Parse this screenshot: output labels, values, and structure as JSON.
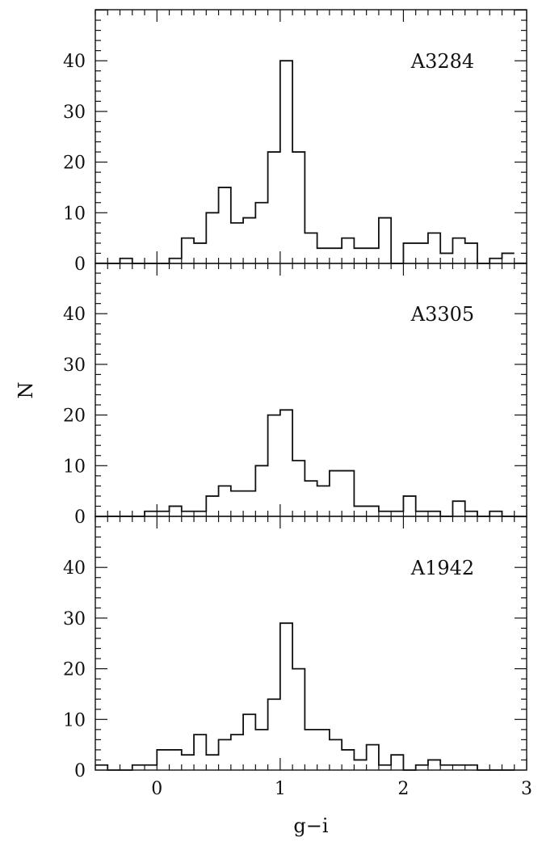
{
  "chart_data": [
    {
      "type": "bar",
      "subtype": "step-histogram",
      "label": "A3284",
      "bin_width": 0.1,
      "bin_starts": [
        -0.4,
        -0.3,
        -0.2,
        -0.1,
        0.0,
        0.1,
        0.2,
        0.3,
        0.4,
        0.5,
        0.6,
        0.7,
        0.8,
        0.9,
        1.0,
        1.1,
        1.2,
        1.3,
        1.4,
        1.5,
        1.6,
        1.7,
        1.8,
        1.9,
        2.0,
        2.1,
        2.2,
        2.3,
        2.4,
        2.5,
        2.6,
        2.7,
        2.8
      ],
      "values": [
        0,
        1,
        0,
        0,
        0,
        1,
        5,
        4,
        10,
        15,
        8,
        9,
        12,
        22,
        40,
        22,
        6,
        3,
        3,
        5,
        3,
        3,
        9,
        0,
        4,
        4,
        6,
        2,
        5,
        4,
        0,
        1,
        2
      ],
      "xlim": [
        -0.5,
        3.0
      ],
      "ylim": [
        0,
        50
      ]
    },
    {
      "type": "bar",
      "subtype": "step-histogram",
      "label": "A3305",
      "bin_width": 0.1,
      "bin_starts": [
        -0.4,
        -0.3,
        -0.2,
        -0.1,
        0.0,
        0.1,
        0.2,
        0.3,
        0.4,
        0.5,
        0.6,
        0.7,
        0.8,
        0.9,
        1.0,
        1.1,
        1.2,
        1.3,
        1.4,
        1.5,
        1.6,
        1.7,
        1.8,
        1.9,
        2.0,
        2.1,
        2.2,
        2.3,
        2.4,
        2.5,
        2.6,
        2.7,
        2.8
      ],
      "values": [
        0,
        0,
        0,
        1,
        1,
        2,
        1,
        1,
        4,
        6,
        5,
        5,
        10,
        20,
        21,
        11,
        7,
        6,
        9,
        9,
        2,
        2,
        1,
        1,
        4,
        1,
        1,
        0,
        3,
        1,
        0,
        1,
        0
      ],
      "xlim": [
        -0.5,
        3.0
      ],
      "ylim": [
        0,
        50
      ]
    },
    {
      "type": "bar",
      "subtype": "step-histogram",
      "label": "A1942",
      "bin_width": 0.1,
      "bin_starts": [
        -0.5,
        -0.4,
        -0.3,
        -0.2,
        -0.1,
        0.0,
        0.1,
        0.2,
        0.3,
        0.4,
        0.5,
        0.6,
        0.7,
        0.8,
        0.9,
        1.0,
        1.1,
        1.2,
        1.3,
        1.4,
        1.5,
        1.6,
        1.7,
        1.8,
        1.9,
        2.0,
        2.1,
        2.2,
        2.3,
        2.4,
        2.5,
        2.6,
        2.7,
        2.8
      ],
      "values": [
        1,
        0,
        0,
        1,
        1,
        4,
        4,
        3,
        7,
        3,
        6,
        7,
        11,
        8,
        14,
        29,
        20,
        8,
        8,
        6,
        4,
        2,
        5,
        1,
        3,
        0,
        1,
        2,
        1,
        1,
        1,
        0,
        0,
        0
      ],
      "xlim": [
        -0.5,
        3.0
      ],
      "ylim": [
        0,
        50
      ]
    }
  ],
  "axes": {
    "xlabel": "g−i",
    "ylabel": "N",
    "xticks": [
      0,
      1,
      2,
      3
    ],
    "yticks": [
      0,
      10,
      20,
      30,
      40
    ]
  }
}
